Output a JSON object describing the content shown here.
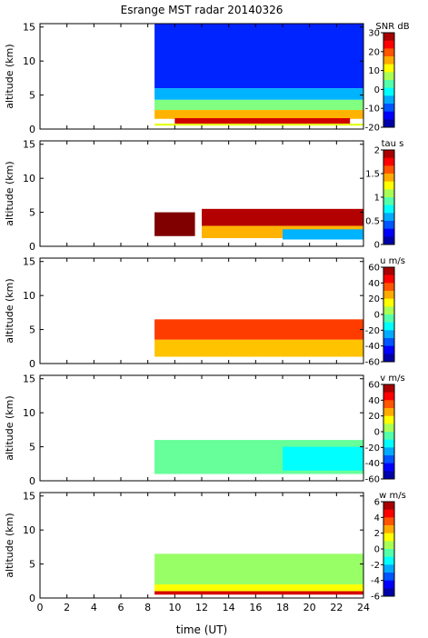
{
  "chart_data": {
    "type": "heatmap",
    "title": "Esrange MST radar 20140326",
    "xlabel": "time (UT)",
    "xlim": [
      0,
      24
    ],
    "x_ticks": [
      "0",
      "2",
      "4",
      "6",
      "8",
      "10",
      "12",
      "14",
      "16",
      "18",
      "20",
      "22",
      "24"
    ],
    "data_start_time": 8.5,
    "panels": [
      {
        "ylabel": "altitude (km)",
        "ylim": [
          0,
          15.5
        ],
        "y_ticks": [
          "0",
          "5",
          "10",
          "15"
        ],
        "colorbar": {
          "label": "SNR dB",
          "ticks": [
            "30",
            "20",
            "10",
            "0",
            "-10",
            "-20"
          ],
          "range": [
            -20,
            30
          ],
          "colormap": "jet"
        },
        "cells": [
          {
            "x0": 8.5,
            "x1": 24,
            "y0": 6.0,
            "y1": 15.5,
            "value": -12
          },
          {
            "x0": 8.5,
            "x1": 24,
            "y0": 4.3,
            "y1": 6.0,
            "value": -5
          },
          {
            "x0": 8.5,
            "x1": 24,
            "y0": 2.8,
            "y1": 4.3,
            "value": 5
          },
          {
            "x0": 8.5,
            "x1": 24,
            "y0": 1.5,
            "y1": 2.8,
            "value": 15
          },
          {
            "x0": 10,
            "x1": 23,
            "y0": 0.8,
            "y1": 1.6,
            "value": 26
          },
          {
            "x0": 8.5,
            "x1": 24,
            "y0": 0.5,
            "y1": 0.8,
            "value": 10
          }
        ]
      },
      {
        "ylabel": "altitude (km)",
        "ylim": [
          0,
          15.5
        ],
        "y_ticks": [
          "0",
          "5",
          "10",
          "15"
        ],
        "colorbar": {
          "label": "tau s",
          "ticks": [
            "2",
            "1.5",
            "1",
            "0.5",
            "0"
          ],
          "range": [
            0,
            2
          ],
          "colormap": "jet"
        },
        "cells": [
          {
            "x0": 8.5,
            "x1": 11.5,
            "y0": 1.5,
            "y1": 5.0,
            "value": 2.0
          },
          {
            "x0": 12,
            "x1": 24,
            "y0": 3.0,
            "y1": 5.5,
            "value": 1.9
          },
          {
            "x0": 12,
            "x1": 24,
            "y0": 1.2,
            "y1": 3.0,
            "value": 1.4
          },
          {
            "x0": 18,
            "x1": 24,
            "y0": 1.0,
            "y1": 2.5,
            "value": 0.6
          }
        ]
      },
      {
        "ylabel": "altitude (km)",
        "ylim": [
          0,
          15.5
        ],
        "y_ticks": [
          "0",
          "5",
          "10",
          "15"
        ],
        "colorbar": {
          "label": "u m/s",
          "ticks": [
            "60",
            "40",
            "20",
            "0",
            "-20",
            "-40",
            "-60"
          ],
          "range": [
            -60,
            60
          ],
          "colormap": "jet"
        },
        "cells": [
          {
            "x0": 8.5,
            "x1": 24,
            "y0": 3.5,
            "y1": 6.5,
            "value": 38
          },
          {
            "x0": 8.5,
            "x1": 24,
            "y0": 1.0,
            "y1": 3.5,
            "value": 22
          }
        ]
      },
      {
        "ylabel": "altitude (km)",
        "ylim": [
          0,
          15.5
        ],
        "y_ticks": [
          "0",
          "5",
          "10",
          "15"
        ],
        "colorbar": {
          "label": "v m/s",
          "ticks": [
            "60",
            "40",
            "20",
            "0",
            "-20",
            "-40",
            "-60"
          ],
          "range": [
            -60,
            60
          ],
          "colormap": "jet"
        },
        "cells": [
          {
            "x0": 8.5,
            "x1": 24,
            "y0": 1.0,
            "y1": 6.0,
            "value": -3
          },
          {
            "x0": 18,
            "x1": 24,
            "y0": 1.5,
            "y1": 5.0,
            "value": -15
          }
        ]
      },
      {
        "ylabel": "altitude (km)",
        "ylim": [
          0,
          15.5
        ],
        "y_ticks": [
          "0",
          "5",
          "10",
          "15"
        ],
        "colorbar": {
          "label": "w m/s",
          "ticks": [
            "6",
            "4",
            "2",
            "0",
            "-2",
            "-4",
            "-6"
          ],
          "range": [
            -6,
            6
          ],
          "colormap": "jet"
        },
        "cells": [
          {
            "x0": 8.5,
            "x1": 24,
            "y0": 2.0,
            "y1": 6.5,
            "value": 0.3
          },
          {
            "x0": 8.5,
            "x1": 24,
            "y0": 1.0,
            "y1": 2.0,
            "value": 1.5
          },
          {
            "x0": 8.5,
            "x1": 24,
            "y0": 0.5,
            "y1": 1.0,
            "value": 5.0
          }
        ]
      }
    ]
  }
}
